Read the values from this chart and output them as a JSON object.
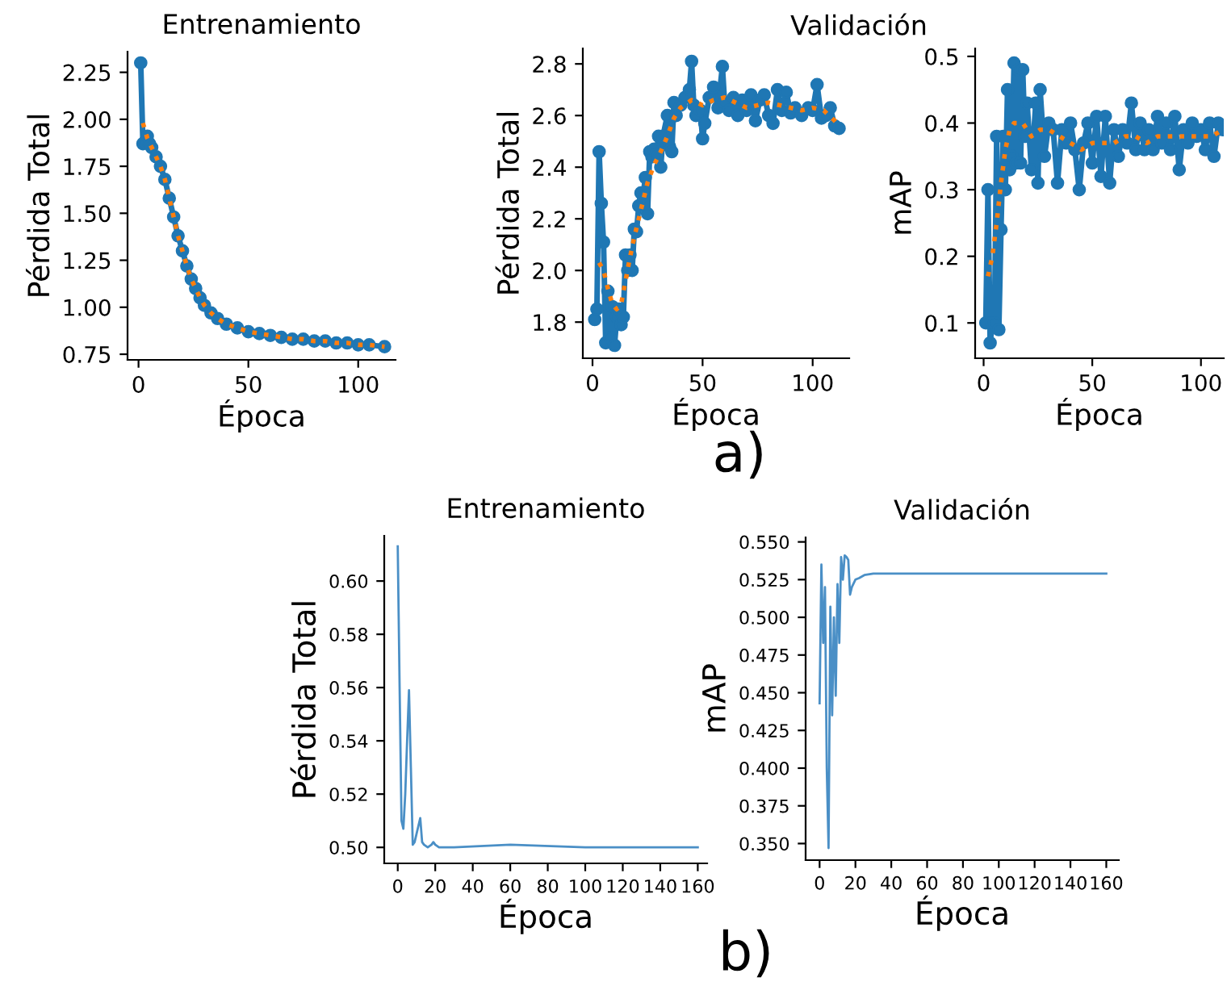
{
  "chart_data": [
    {
      "type": "line",
      "title": "Entrenamiento",
      "xlabel": "Época",
      "ylabel": "Pérdida Total",
      "xlim": [
        -5,
        117
      ],
      "ylim": [
        0.72,
        2.36
      ],
      "xticks": [
        0,
        50,
        100
      ],
      "yticks": [
        0.75,
        {
          "value": 1.0,
          "label": "1.00"
        },
        1.25,
        {
          "value": 1.5,
          "label": "1.50"
        },
        1.75,
        {
          "value": 2.0,
          "label": "2.00"
        },
        2.25
      ],
      "grid": false,
      "series": [
        {
          "color": "#1f77b4",
          "marker": "circle",
          "line_style": "solid",
          "x": [
            1,
            2,
            3,
            4,
            5,
            6,
            8,
            10,
            12,
            14,
            16,
            18,
            20,
            22,
            24,
            26,
            28,
            30,
            33,
            36,
            40,
            45,
            50,
            55,
            60,
            65,
            70,
            75,
            80,
            85,
            90,
            95,
            100,
            105,
            112
          ],
          "values": [
            2.3,
            1.87,
            1.88,
            1.91,
            1.87,
            1.85,
            1.8,
            1.75,
            1.68,
            1.58,
            1.48,
            1.38,
            1.3,
            1.22,
            1.15,
            1.1,
            1.05,
            1.01,
            0.97,
            0.94,
            0.91,
            0.89,
            0.87,
            0.86,
            0.85,
            0.84,
            0.83,
            0.83,
            0.82,
            0.82,
            0.81,
            0.81,
            0.8,
            0.8,
            0.79
          ]
        },
        {
          "color": "#ff7f0e",
          "marker": "none",
          "line_style": "dotted",
          "x": [
            2,
            4,
            6,
            8,
            10,
            12,
            14,
            16,
            18,
            20,
            22,
            24,
            26,
            28,
            30,
            33,
            36,
            40,
            45,
            50,
            55,
            60,
            65,
            70,
            75,
            80,
            85,
            90,
            95,
            100,
            105,
            112
          ],
          "values": [
            1.98,
            1.9,
            1.85,
            1.8,
            1.75,
            1.68,
            1.58,
            1.48,
            1.38,
            1.3,
            1.22,
            1.15,
            1.1,
            1.05,
            1.01,
            0.97,
            0.94,
            0.91,
            0.89,
            0.87,
            0.86,
            0.85,
            0.84,
            0.83,
            0.83,
            0.82,
            0.82,
            0.81,
            0.81,
            0.8,
            0.8,
            0.79
          ]
        }
      ]
    },
    {
      "type": "line",
      "title": "Validación",
      "xlabel": "Época",
      "ylabel": "Pérdida Total",
      "xlim": [
        -4.4,
        116.6
      ],
      "ylim": [
        1.66,
        2.86
      ],
      "xticks": [
        0,
        50,
        100
      ],
      "yticks": [
        1.8,
        {
          "value": 2.0,
          "label": "2.0"
        },
        2.2,
        2.4,
        2.6,
        2.8
      ],
      "grid": false,
      "annotations": [
        "a)"
      ],
      "series": [
        {
          "color": "#1f77b4",
          "marker": "circle",
          "line_style": "solid",
          "x": [
            1,
            2,
            3,
            4,
            5,
            6,
            7,
            8,
            9,
            10,
            11,
            12,
            13,
            14,
            15,
            16,
            17,
            18,
            19,
            20,
            21,
            22,
            23,
            24,
            25,
            26,
            27,
            28,
            29,
            30,
            31,
            32,
            34,
            35,
            36,
            37,
            38,
            40,
            42,
            44,
            45,
            46,
            47,
            49,
            50,
            51,
            53,
            55,
            57,
            59,
            60,
            62,
            64,
            66,
            68,
            70,
            72,
            74,
            76,
            78,
            80,
            82,
            84,
            86,
            88,
            90,
            92,
            95,
            98,
            100,
            102,
            104,
            106,
            108,
            110,
            112
          ],
          "values": [
            1.81,
            1.85,
            2.46,
            2.26,
            2.11,
            1.72,
            1.92,
            1.74,
            1.86,
            1.71,
            1.82,
            1.85,
            1.79,
            1.82,
            2.06,
            2.0,
            2.06,
            2.0,
            2.16,
            2.15,
            2.25,
            2.3,
            2.29,
            2.36,
            2.22,
            2.46,
            2.44,
            2.47,
            2.45,
            2.52,
            2.4,
            2.52,
            2.6,
            2.48,
            2.46,
            2.65,
            2.6,
            2.64,
            2.67,
            2.7,
            2.81,
            2.64,
            2.6,
            2.62,
            2.51,
            2.57,
            2.67,
            2.71,
            2.63,
            2.79,
            2.65,
            2.62,
            2.67,
            2.6,
            2.66,
            2.62,
            2.68,
            2.58,
            2.66,
            2.68,
            2.6,
            2.57,
            2.7,
            2.62,
            2.69,
            2.61,
            2.63,
            2.6,
            2.63,
            2.62,
            2.72,
            2.59,
            2.6,
            2.63,
            2.56,
            2.55
          ]
        },
        {
          "color": "#ff7f0e",
          "marker": "none",
          "line_style": "dotted",
          "x": [
            3,
            5,
            7,
            9,
            11,
            13,
            15,
            17,
            19,
            21,
            23,
            25,
            28,
            31,
            34,
            37,
            40,
            45,
            50,
            55,
            60,
            65,
            70,
            75,
            80,
            85,
            90,
            95,
            100,
            105,
            110,
            112
          ],
          "values": [
            2.03,
            2.0,
            1.93,
            1.87,
            1.85,
            1.87,
            1.96,
            2.05,
            2.13,
            2.2,
            2.27,
            2.34,
            2.41,
            2.46,
            2.52,
            2.59,
            2.63,
            2.66,
            2.64,
            2.66,
            2.67,
            2.65,
            2.63,
            2.64,
            2.65,
            2.64,
            2.63,
            2.62,
            2.63,
            2.62,
            2.58,
            2.56
          ]
        }
      ]
    },
    {
      "type": "line",
      "xlabel": "Época",
      "ylabel": "mAP",
      "xlim": [
        -3.9,
        110.5
      ],
      "ylim": [
        0.047,
        0.512
      ],
      "xticks": [
        0,
        50,
        100
      ],
      "yticks": [
        0.1,
        0.2,
        0.3,
        0.4,
        0.5
      ],
      "grid": false,
      "series": [
        {
          "color": "#1f77b4",
          "marker": "circle",
          "line_style": "solid",
          "x": [
            1,
            2,
            3,
            4,
            5,
            6,
            7,
            8,
            9,
            10,
            11,
            12,
            13,
            14,
            15,
            16,
            17,
            18,
            19,
            20,
            22,
            24,
            25,
            26,
            28,
            30,
            32,
            34,
            36,
            38,
            40,
            42,
            44,
            46,
            48,
            50,
            52,
            54,
            56,
            58,
            60,
            62,
            64,
            66,
            68,
            70,
            72,
            74,
            76,
            78,
            80,
            82,
            84,
            86,
            88,
            90,
            92,
            94,
            96,
            98,
            100,
            102,
            104,
            106,
            108,
            110
          ],
          "values": [
            0.1,
            0.3,
            0.07,
            0.1,
            0.1,
            0.38,
            0.09,
            0.24,
            0.38,
            0.3,
            0.45,
            0.33,
            0.35,
            0.49,
            0.34,
            0.48,
            0.34,
            0.48,
            0.38,
            0.43,
            0.33,
            0.43,
            0.31,
            0.45,
            0.35,
            0.4,
            0.39,
            0.31,
            0.39,
            0.37,
            0.4,
            0.36,
            0.3,
            0.37,
            0.4,
            0.34,
            0.41,
            0.32,
            0.41,
            0.31,
            0.39,
            0.35,
            0.39,
            0.37,
            0.43,
            0.36,
            0.4,
            0.36,
            0.39,
            0.36,
            0.41,
            0.37,
            0.4,
            0.36,
            0.41,
            0.33,
            0.39,
            0.37,
            0.4,
            0.38,
            0.39,
            0.36,
            0.4,
            0.35,
            0.4,
            0.39
          ]
        },
        {
          "color": "#ff7f0e",
          "marker": "none",
          "line_style": "dotted",
          "x": [
            2,
            4,
            6,
            8,
            10,
            12,
            14,
            18,
            22,
            26,
            30,
            35,
            40,
            45,
            50,
            55,
            60,
            65,
            70,
            75,
            80,
            85,
            90,
            95,
            100,
            105,
            110
          ],
          "values": [
            0.17,
            0.2,
            0.25,
            0.31,
            0.36,
            0.39,
            0.4,
            0.4,
            0.38,
            0.39,
            0.39,
            0.38,
            0.37,
            0.36,
            0.37,
            0.37,
            0.37,
            0.38,
            0.38,
            0.37,
            0.38,
            0.38,
            0.38,
            0.38,
            0.38,
            0.38,
            0.39
          ]
        }
      ]
    },
    {
      "type": "line",
      "title": "Entrenamiento",
      "xlabel": "Época",
      "ylabel": "Pérdida Total",
      "xlim": [
        -7.2,
        165
      ],
      "ylim": [
        0.494,
        0.617
      ],
      "xticks": [
        0,
        20,
        40,
        60,
        80,
        100,
        120,
        140,
        160
      ],
      "yticks": [
        {
          "value": 0.5,
          "label": "0.50"
        },
        0.52,
        0.54,
        0.56,
        0.58,
        {
          "value": 0.6,
          "label": "0.60"
        }
      ],
      "grid": false,
      "annotations": [
        "b)"
      ],
      "series": [
        {
          "color": "#4a8fc6",
          "marker": "none",
          "line_style": "solid",
          "x": [
            0,
            1,
            2,
            3,
            4,
            5,
            6,
            7,
            8,
            9,
            10,
            11,
            12,
            13,
            14,
            16,
            18,
            19,
            20,
            22,
            30,
            60,
            100,
            160
          ],
          "values": [
            0.613,
            0.56,
            0.51,
            0.507,
            0.52,
            0.54,
            0.559,
            0.53,
            0.501,
            0.502,
            0.505,
            0.508,
            0.511,
            0.502,
            0.501,
            0.5,
            0.501,
            0.502,
            0.501,
            0.5,
            0.5,
            0.501,
            0.5,
            0.5
          ]
        }
      ]
    },
    {
      "type": "line",
      "title": "Validación",
      "xlabel": "Época",
      "ylabel": "mAP",
      "xlim": [
        -7.8,
        167
      ],
      "ylim": [
        0.339,
        0.553
      ],
      "xticks": [
        0,
        20,
        40,
        60,
        80,
        100,
        120,
        140,
        160
      ],
      "yticks": [
        {
          "value": 0.35,
          "label": "0.350"
        },
        {
          "value": 0.375,
          "label": "0.375"
        },
        {
          "value": 0.4,
          "label": "0.400"
        },
        {
          "value": 0.425,
          "label": "0.425"
        },
        {
          "value": 0.45,
          "label": "0.450"
        },
        {
          "value": 0.475,
          "label": "0.475"
        },
        {
          "value": 0.5,
          "label": "0.500"
        },
        {
          "value": 0.525,
          "label": "0.525"
        },
        {
          "value": 0.55,
          "label": "0.550"
        }
      ],
      "grid": false,
      "series": [
        {
          "color": "#4a8fc6",
          "marker": "none",
          "line_style": "solid",
          "x": [
            0,
            1,
            2,
            3,
            4,
            5,
            6,
            7,
            8,
            9,
            10,
            11,
            12,
            13,
            14,
            15,
            16,
            17,
            18,
            20,
            22,
            25,
            30,
            160
          ],
          "values": [
            0.443,
            0.535,
            0.483,
            0.52,
            0.4,
            0.347,
            0.507,
            0.435,
            0.5,
            0.448,
            0.522,
            0.483,
            0.54,
            0.525,
            0.541,
            0.54,
            0.538,
            0.515,
            0.52,
            0.525,
            0.526,
            0.528,
            0.529,
            0.529
          ]
        }
      ]
    }
  ]
}
